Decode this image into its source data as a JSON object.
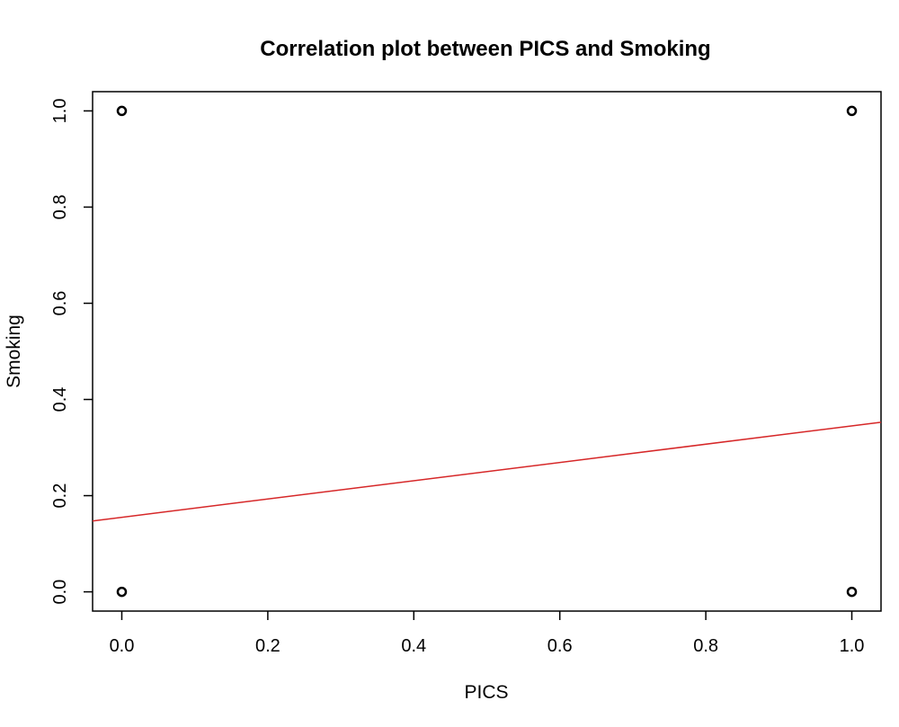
{
  "chart_data": {
    "type": "scatter",
    "title": "Correlation plot between PICS and Smoking",
    "xlabel": "PICS",
    "ylabel": "Smoking",
    "xlim": [
      -0.04,
      1.04
    ],
    "ylim": [
      -0.04,
      1.04
    ],
    "xticks": [
      "0.0",
      "0.2",
      "0.4",
      "0.6",
      "0.8",
      "1.0"
    ],
    "yticks": [
      "0.0",
      "0.2",
      "0.4",
      "0.6",
      "0.8",
      "1.0"
    ],
    "points": [
      {
        "x": 0,
        "y": 0
      },
      {
        "x": 0,
        "y": 1
      },
      {
        "x": 1,
        "y": 0
      },
      {
        "x": 1,
        "y": 1
      }
    ],
    "regression_line": {
      "intercept": 0.155,
      "slope": 0.19,
      "color": "#d62728"
    },
    "grid": false
  }
}
